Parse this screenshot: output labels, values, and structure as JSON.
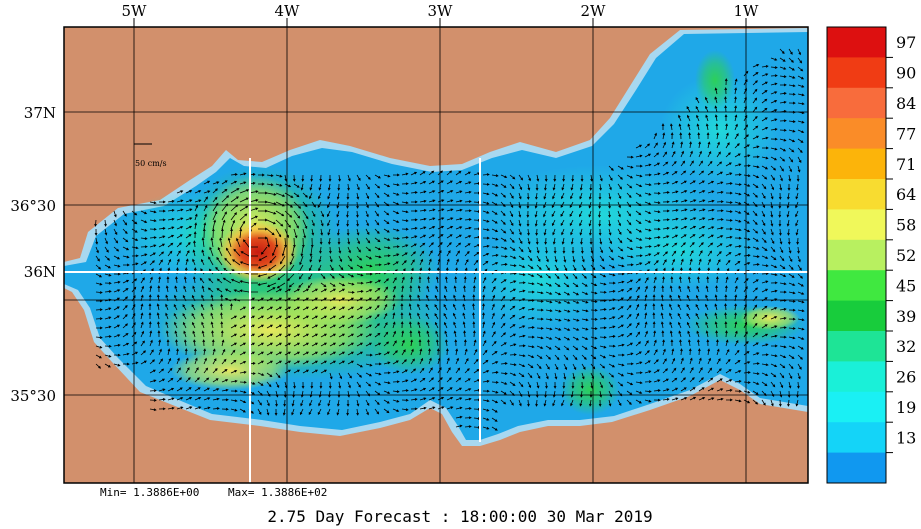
{
  "map": {
    "lon_labels": [
      "5W",
      "4W",
      "3W",
      "2W",
      "1W"
    ],
    "lat_labels": [
      "37N",
      "36°30",
      "36N",
      "35°30"
    ],
    "scale_label": "50 cm/s",
    "colors": {
      "land": "#d2906c",
      "shelf": "#a8d8f0",
      "sea_low": "#1fa8e8",
      "sea_mid": "#22d4e0",
      "green": "#2ed44a",
      "yellow": "#f2ea5a",
      "orange": "#f08a2a",
      "red": "#c81a10"
    }
  },
  "colorbar": {
    "labels": [
      "97",
      "90",
      "84",
      "77",
      "71",
      "64",
      "58",
      "52",
      "45",
      "39",
      "32",
      "26",
      "19",
      "13"
    ],
    "colors": [
      "#dd1010",
      "#f03c14",
      "#f86c3c",
      "#fa8c28",
      "#fcb40a",
      "#f8dc30",
      "#f0f85a",
      "#b8f060",
      "#40e840",
      "#18cc3c",
      "#1ee496",
      "#1af0d8",
      "#1af0f4",
      "#14d4f8",
      "#1098f0"
    ]
  },
  "stats": {
    "min_text": "Min= 1.3886E+00",
    "max_text": "Max= 1.3886E+02"
  },
  "footer": {
    "forecast_text": "2.75 Day Forecast : 18:00:00  30 Mar 2019"
  }
}
